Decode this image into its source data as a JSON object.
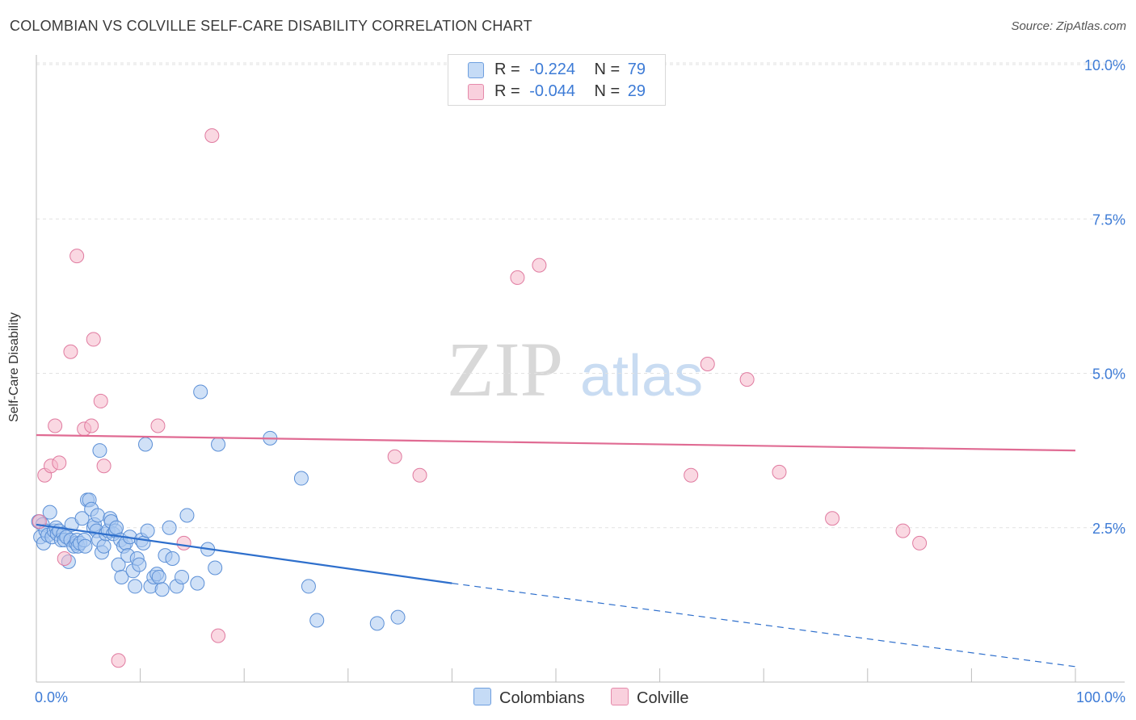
{
  "title": "COLOMBIAN VS COLVILLE SELF-CARE DISABILITY CORRELATION CHART",
  "source": "Source: ZipAtlas.com",
  "watermark": {
    "zip": "ZIP",
    "atlas": "atlas"
  },
  "legend": {
    "rows": [
      {
        "r_label": "R =",
        "r_value": "-0.224",
        "n_label": "N =",
        "n_value": "79",
        "color": "#a9c8f0"
      },
      {
        "r_label": "R =",
        "r_value": "-0.044",
        "n_label": "N =",
        "n_value": "29",
        "color": "#f5b8cb"
      }
    ]
  },
  "bottom_legend": {
    "series1": "Colombians",
    "series2": "Colville"
  },
  "chart_data": {
    "type": "scatter",
    "title": "COLOMBIAN VS COLVILLE SELF-CARE DISABILITY CORRELATION CHART",
    "xlabel": "",
    "ylabel": "Self-Care Disability",
    "xlim": [
      0,
      100
    ],
    "ylim": [
      0,
      10.5
    ],
    "x_tick_labels": [
      "0.0%",
      "100.0%"
    ],
    "y_ticks": [
      {
        "value": 2.5,
        "label": "2.5%"
      },
      {
        "value": 5.0,
        "label": "5.0%"
      },
      {
        "value": 7.5,
        "label": "7.5%"
      },
      {
        "value": 10.0,
        "label": "10.0%"
      }
    ],
    "grid": true,
    "series": [
      {
        "name": "Colombians",
        "color": "#a9c8f0",
        "edge": "#5b8fd6",
        "trend": {
          "x0": 0,
          "y0": 2.55,
          "x1": 40,
          "y1": 1.6,
          "x_dash_end": 100,
          "y_dash_end": 0.25,
          "color": "#2e6fcc"
        },
        "points": [
          [
            0.2,
            2.6
          ],
          [
            0.4,
            2.35
          ],
          [
            0.6,
            2.55
          ],
          [
            0.7,
            2.25
          ],
          [
            0.9,
            2.45
          ],
          [
            1.1,
            2.38
          ],
          [
            1.3,
            2.75
          ],
          [
            1.5,
            2.35
          ],
          [
            1.7,
            2.45
          ],
          [
            1.9,
            2.5
          ],
          [
            2.0,
            2.4
          ],
          [
            2.2,
            2.45
          ],
          [
            2.4,
            2.3
          ],
          [
            2.6,
            2.4
          ],
          [
            2.7,
            2.3
          ],
          [
            2.9,
            2.35
          ],
          [
            3.1,
            1.95
          ],
          [
            3.3,
            2.3
          ],
          [
            3.4,
            2.55
          ],
          [
            3.6,
            2.2
          ],
          [
            3.8,
            2.25
          ],
          [
            3.9,
            2.3
          ],
          [
            4.0,
            2.2
          ],
          [
            4.2,
            2.25
          ],
          [
            4.4,
            2.65
          ],
          [
            4.6,
            2.3
          ],
          [
            4.7,
            2.2
          ],
          [
            4.9,
            2.95
          ],
          [
            5.1,
            2.95
          ],
          [
            5.3,
            2.8
          ],
          [
            5.5,
            2.5
          ],
          [
            5.6,
            2.55
          ],
          [
            5.8,
            2.45
          ],
          [
            5.9,
            2.7
          ],
          [
            6.0,
            2.3
          ],
          [
            6.1,
            3.75
          ],
          [
            6.3,
            2.1
          ],
          [
            6.5,
            2.2
          ],
          [
            6.7,
            2.4
          ],
          [
            6.9,
            2.45
          ],
          [
            7.1,
            2.65
          ],
          [
            7.2,
            2.6
          ],
          [
            7.4,
            2.4
          ],
          [
            7.6,
            2.45
          ],
          [
            7.7,
            2.5
          ],
          [
            7.9,
            1.9
          ],
          [
            8.1,
            2.3
          ],
          [
            8.2,
            1.7
          ],
          [
            8.4,
            2.2
          ],
          [
            8.6,
            2.25
          ],
          [
            8.8,
            2.05
          ],
          [
            9.0,
            2.35
          ],
          [
            9.3,
            1.8
          ],
          [
            9.5,
            1.55
          ],
          [
            9.7,
            2.0
          ],
          [
            9.9,
            1.9
          ],
          [
            10.1,
            2.3
          ],
          [
            10.3,
            2.25
          ],
          [
            10.5,
            3.85
          ],
          [
            10.7,
            2.45
          ],
          [
            11.0,
            1.55
          ],
          [
            11.3,
            1.7
          ],
          [
            11.6,
            1.75
          ],
          [
            11.8,
            1.7
          ],
          [
            12.1,
            1.5
          ],
          [
            12.4,
            2.05
          ],
          [
            12.8,
            2.5
          ],
          [
            13.1,
            2.0
          ],
          [
            13.5,
            1.55
          ],
          [
            14.0,
            1.7
          ],
          [
            14.5,
            2.7
          ],
          [
            15.5,
            1.6
          ],
          [
            15.8,
            4.7
          ],
          [
            16.5,
            2.15
          ],
          [
            17.2,
            1.85
          ],
          [
            17.5,
            3.85
          ],
          [
            22.5,
            3.95
          ],
          [
            25.5,
            3.3
          ],
          [
            26.2,
            1.55
          ]
        ],
        "extra_points": [
          [
            27.0,
            1.0
          ],
          [
            32.8,
            0.95
          ],
          [
            34.8,
            1.05
          ]
        ]
      },
      {
        "name": "Colville",
        "color": "#f5b8cb",
        "edge": "#e07ba0",
        "trend": {
          "x0": 0,
          "y0": 4.0,
          "x1": 100,
          "y1": 3.75,
          "color": "#e06b93"
        },
        "points": [
          [
            0.3,
            2.6
          ],
          [
            0.8,
            3.35
          ],
          [
            1.4,
            3.5
          ],
          [
            1.8,
            4.15
          ],
          [
            2.2,
            3.55
          ],
          [
            2.7,
            2.0
          ],
          [
            3.3,
            5.35
          ],
          [
            3.9,
            6.9
          ],
          [
            4.6,
            4.1
          ],
          [
            5.3,
            4.15
          ],
          [
            5.5,
            5.55
          ],
          [
            6.2,
            4.55
          ],
          [
            6.5,
            3.5
          ],
          [
            7.9,
            0.35
          ],
          [
            11.7,
            4.15
          ],
          [
            14.2,
            2.25
          ],
          [
            16.9,
            8.85
          ],
          [
            17.5,
            0.75
          ],
          [
            34.5,
            3.65
          ],
          [
            36.9,
            3.35
          ],
          [
            46.3,
            6.55
          ],
          [
            48.4,
            6.75
          ],
          [
            63.0,
            3.35
          ],
          [
            64.6,
            5.15
          ],
          [
            68.4,
            4.9
          ],
          [
            71.5,
            3.4
          ],
          [
            76.6,
            2.65
          ],
          [
            83.4,
            2.45
          ],
          [
            85.0,
            2.25
          ]
        ]
      }
    ]
  }
}
